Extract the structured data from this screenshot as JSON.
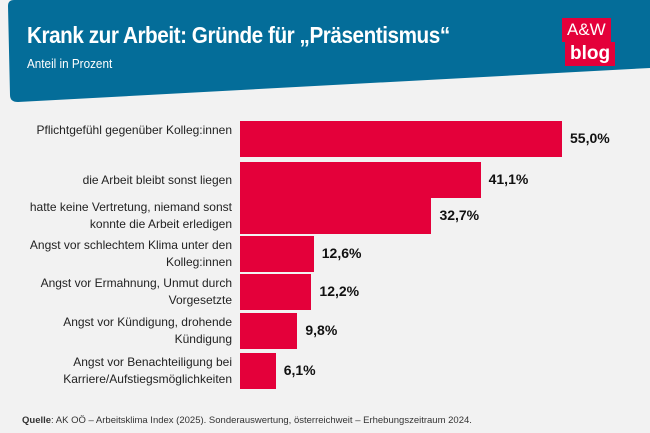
{
  "header": {
    "title": "Krank zur Arbeit: Gründe für „Präsentismus“",
    "subtitle": "Anteil in Prozent",
    "logo_top": "A&W",
    "logo_bottom": "blog"
  },
  "colors": {
    "banner": "#046d99",
    "bar": "#e4003a",
    "background": "#f2f2f2"
  },
  "chart_data": {
    "type": "bar",
    "orientation": "horizontal",
    "title": "Krank zur Arbeit: Gründe für „Präsentismus“",
    "subtitle": "Anteil in Prozent",
    "categories": [
      "Pflichtgefühl gegenüber Kolleg:innen",
      "die Arbeit bleibt sonst liegen",
      "hatte keine Vertretung, niemand sonst konnte die Arbeit erledigen",
      "Angst vor schlechtem Klima unter den Kolleg:innen",
      "Angst vor Ermahnung, Unmut durch Vorgesetzte",
      "Angst vor Kündigung, drohende Kündigung",
      "Angst vor Benachteiligung bei Karriere/Aufstiegsmöglichkeiten"
    ],
    "values": [
      55.0,
      41.1,
      32.7,
      12.6,
      12.2,
      9.8,
      6.1
    ],
    "data_labels": [
      "55,0%",
      "41,1%",
      "32,7%",
      "12,6%",
      "12,2%",
      "9,8%",
      "6,1%"
    ],
    "xlim": [
      0,
      55
    ],
    "grid": false,
    "legend": "none"
  },
  "source": {
    "label": "Quelle",
    "text": ": AK OÖ – Arbeitsklima Index (2025). Sonderauswertung, österreichweit – Erhebungszeitraum 2024."
  }
}
